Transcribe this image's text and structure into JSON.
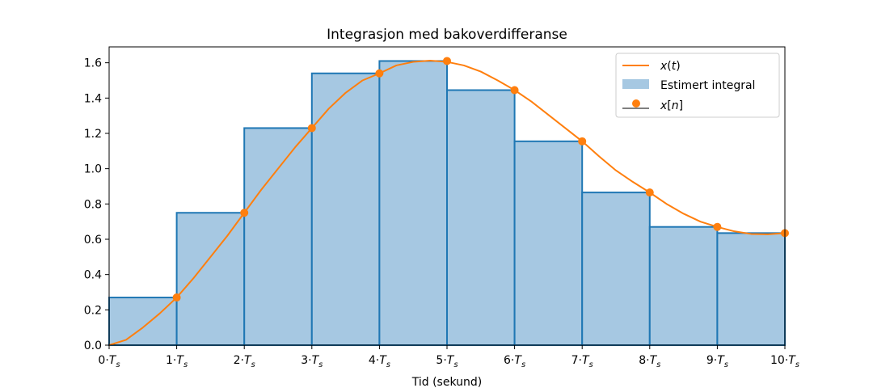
{
  "chart_data": {
    "type": "bar",
    "title": "Integrasjon med bakoverdifferanse",
    "xlabel": "Tid (sekund)",
    "ylabel": "",
    "xlim": [
      0,
      10
    ],
    "ylim": [
      0,
      1.69
    ],
    "grid": false,
    "legend_position": "top-right",
    "x_ticks": [
      {
        "value": 0,
        "label": "0·T_s"
      },
      {
        "value": 1,
        "label": "1·T_s"
      },
      {
        "value": 2,
        "label": "2·T_s"
      },
      {
        "value": 3,
        "label": "3·T_s"
      },
      {
        "value": 4,
        "label": "4·T_s"
      },
      {
        "value": 5,
        "label": "5·T_s"
      },
      {
        "value": 6,
        "label": "6·T_s"
      },
      {
        "value": 7,
        "label": "7·T_s"
      },
      {
        "value": 8,
        "label": "8·T_s"
      },
      {
        "value": 9,
        "label": "9·T_s"
      },
      {
        "value": 10,
        "label": "10·T_s"
      }
    ],
    "y_ticks": [
      {
        "value": 0.0,
        "label": "0.0"
      },
      {
        "value": 0.2,
        "label": "0.2"
      },
      {
        "value": 0.4,
        "label": "0.4"
      },
      {
        "value": 0.6,
        "label": "0.6"
      },
      {
        "value": 0.8,
        "label": "0.8"
      },
      {
        "value": 1.0,
        "label": "1.0"
      },
      {
        "value": 1.2,
        "label": "1.2"
      },
      {
        "value": 1.4,
        "label": "1.4"
      },
      {
        "value": 1.6,
        "label": "1.6"
      }
    ],
    "series": [
      {
        "name": "x(t)",
        "kind": "line",
        "color": "#ff7f0e",
        "x": [
          0,
          0.25,
          0.5,
          0.75,
          1,
          1.25,
          1.5,
          1.75,
          2,
          2.25,
          2.5,
          2.75,
          3,
          3.25,
          3.5,
          3.75,
          4,
          4.25,
          4.5,
          4.75,
          5,
          5.25,
          5.5,
          5.75,
          6,
          6.25,
          6.5,
          6.75,
          7,
          7.25,
          7.5,
          7.75,
          8,
          8.25,
          8.5,
          8.75,
          9,
          9.25,
          9.5,
          9.75,
          10
        ],
        "y": [
          0.0,
          0.03,
          0.1,
          0.18,
          0.27,
          0.38,
          0.5,
          0.62,
          0.75,
          0.88,
          1.0,
          1.12,
          1.23,
          1.34,
          1.43,
          1.5,
          1.54,
          1.585,
          1.605,
          1.612,
          1.605,
          1.585,
          1.55,
          1.5,
          1.445,
          1.38,
          1.305,
          1.23,
          1.155,
          1.07,
          0.99,
          0.925,
          0.865,
          0.8,
          0.745,
          0.7,
          0.67,
          0.645,
          0.63,
          0.628,
          0.635
        ]
      },
      {
        "name": "Estimert integral",
        "kind": "bar",
        "color": "#a6c8e2",
        "edge_color": "#1f77b4",
        "categories": [
          0,
          1,
          2,
          3,
          4,
          5,
          6,
          7,
          8,
          9
        ],
        "values": [
          0.27,
          0.75,
          1.23,
          1.54,
          1.61,
          1.445,
          1.155,
          0.865,
          0.67,
          0.635
        ]
      },
      {
        "name": "x[n]",
        "kind": "stem",
        "color": "#ff7f0e",
        "stem_color": "#808080",
        "x": [
          1,
          2,
          3,
          4,
          5,
          6,
          7,
          8,
          9,
          10
        ],
        "y": [
          0.27,
          0.75,
          1.23,
          1.54,
          1.61,
          1.445,
          1.155,
          0.865,
          0.67,
          0.635
        ]
      }
    ],
    "legend": [
      {
        "label": "x(t)",
        "marker": "line"
      },
      {
        "label": "Estimert integral",
        "marker": "patch"
      },
      {
        "label": "x[n]",
        "marker": "stem"
      }
    ]
  }
}
